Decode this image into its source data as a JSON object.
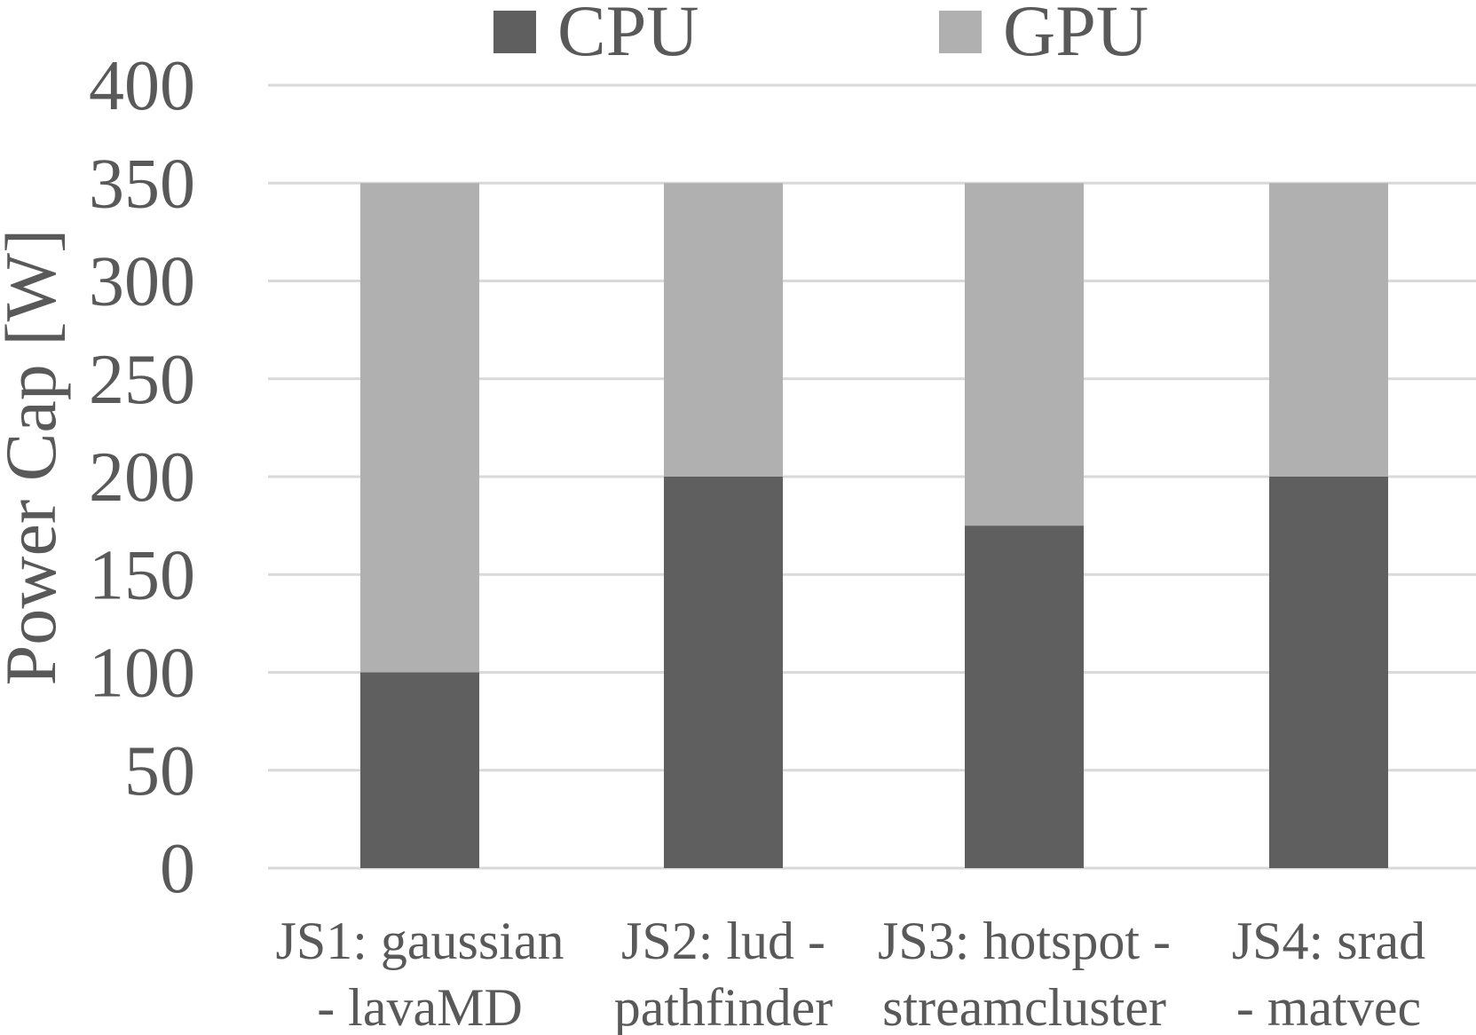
{
  "chart_data": {
    "type": "bar",
    "stacked": true,
    "title": "",
    "xlabel": "",
    "ylabel": "Power Cap [W]",
    "ylim": [
      0,
      400
    ],
    "yticks": [
      "0",
      "50",
      "100",
      "150",
      "200",
      "250",
      "300",
      "350",
      "400"
    ],
    "grid": true,
    "legend_position": "top",
    "categories": [
      [
        "JS1: gaussian",
        "- lavaMD"
      ],
      [
        "JS2: lud -",
        "pathfinder"
      ],
      [
        "JS3: hotspot -",
        "streamcluster"
      ],
      [
        "JS4: srad",
        "- matvec"
      ]
    ],
    "series": [
      {
        "name": "CPU",
        "color": "#5f5f5f",
        "values": [
          100,
          200,
          175,
          200
        ]
      },
      {
        "name": "GPU",
        "color": "#b0b0b0",
        "values": [
          250,
          150,
          175,
          150
        ]
      }
    ]
  }
}
